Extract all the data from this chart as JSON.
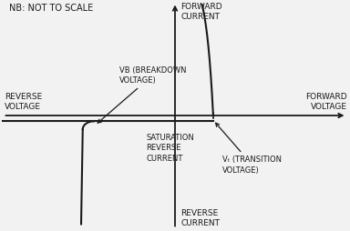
{
  "bg_color": "#f2f2f2",
  "line_color": "#1a1a1a",
  "text_color": "#1a1a1a",
  "nb_text": "NB: NOT TO SCALE",
  "label_forward_current": "FORWARD\nCURRENT",
  "label_reverse_current": "REVERSE\nCURRENT",
  "label_forward_voltage": "FORWARD\nVOLTAGE",
  "label_reverse_voltage": "REVERSE\nVOLTAGE",
  "label_vb": "VB (BREAKDOWN\nVOLTAGE)",
  "label_vt": "Vₜ (TRANSITION\nVOLTAGE)",
  "label_saturation": "SATURATION\nREVERSE\nCURRENT",
  "xlim": [
    -5.5,
    5.5
  ],
  "ylim": [
    -5.0,
    5.0
  ],
  "vb_x": -2.8,
  "vt_x": 1.2,
  "saturation_y": -0.25,
  "font_size_small": 6.5,
  "font_size_nb": 7.0
}
